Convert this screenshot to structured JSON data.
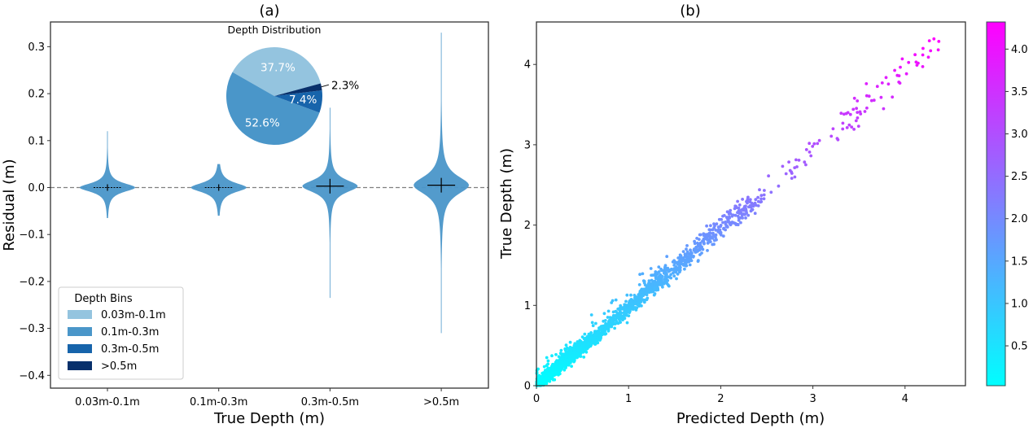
{
  "chart_data": [
    {
      "type": "violin",
      "panel_label": "(a)",
      "title": "",
      "xlabel": "True Depth (m)",
      "ylabel": "Residual (m)",
      "categories": [
        "0.03m-0.1m",
        "0.1m-0.3m",
        "0.3m-0.5m",
        ">0.5m"
      ],
      "ylim": [
        -0.42,
        0.35
      ],
      "yticks": [
        0.3,
        0.2,
        0.1,
        0.0,
        -0.1,
        -0.2,
        -0.3,
        -0.4
      ],
      "ytick_labels": [
        "0.3",
        "0.2",
        "0.1",
        "0.0",
        "−0.1",
        "−0.2",
        "−0.3",
        "−0.4"
      ],
      "reference_line": {
        "y": 0.0,
        "style": "dashed",
        "color": "#808080"
      },
      "violins": [
        {
          "category": "0.03m-0.1m",
          "min": -0.065,
          "max": 0.12,
          "mean": 0.0,
          "median": 0.0,
          "spread": 0.012,
          "color": "#4a96c9"
        },
        {
          "category": "0.1m-0.3m",
          "min": -0.06,
          "max": 0.05,
          "mean": 0.0,
          "median": 0.0,
          "spread": 0.013,
          "color": "#4a96c9"
        },
        {
          "category": "0.3m-0.5m",
          "min": -0.235,
          "max": 0.17,
          "mean": 0.003,
          "median": 0.002,
          "spread": 0.017,
          "color": "#4a96c9"
        },
        {
          "category": ">0.5m",
          "min": -0.31,
          "max": 0.33,
          "mean": 0.005,
          "median": 0.004,
          "spread": 0.025,
          "color": "#4a96c9"
        }
      ],
      "inset_pie": {
        "title": "Depth Distribution",
        "start_angle_deg": 15,
        "slices": [
          {
            "label": "0.03m-0.1m",
            "value": 37.7,
            "text": "37.7%",
            "color": "#94c4df",
            "label_inside": true
          },
          {
            "label": "0.1m-0.3m",
            "value": 52.6,
            "text": "52.6%",
            "color": "#4a96c9",
            "label_inside": true
          },
          {
            "label": "0.3m-0.5m",
            "value": 7.4,
            "text": "7.4%",
            "color": "#1764ab",
            "label_inside": true
          },
          {
            "label": ">0.5m",
            "value": 2.3,
            "text": "2.3%",
            "color": "#08306b",
            "label_inside": false
          }
        ]
      },
      "legend": {
        "title": "Depth Bins",
        "placement": "lower-left",
        "entries": [
          {
            "label": "0.03m-0.1m",
            "color": "#94c4df"
          },
          {
            "label": "0.1m-0.3m",
            "color": "#4a96c9"
          },
          {
            "label": "0.3m-0.5m",
            "color": "#1764ab"
          },
          {
            "label": ">0.5m",
            "color": "#08306b"
          }
        ]
      }
    },
    {
      "type": "scatter",
      "panel_label": "(b)",
      "title": "",
      "xlabel": "Predicted Depth (m)",
      "ylabel": "True Depth (m)",
      "xlim": [
        0,
        4.6
      ],
      "ylim": [
        0,
        4.5
      ],
      "xticks": [
        0,
        1,
        2,
        3,
        4
      ],
      "yticks": [
        0,
        1,
        2,
        3,
        4
      ],
      "grid": false,
      "point_summary": {
        "relation": "True Depth ≈ Predicted Depth",
        "x_range": [
          0.0,
          4.45
        ],
        "y_range": [
          0.0,
          4.32
        ],
        "approx_point_count": 2200,
        "density": "very dense below 1 m, sparse above 2.3 m",
        "note": "individual points not legible; rendered from this summary"
      },
      "colorbar": {
        "colormap": "cool",
        "color_low": "#00ffff",
        "color_high": "#ff00ff",
        "range": [
          0.03,
          4.32
        ],
        "ticks": [
          0.5,
          1.0,
          1.5,
          2.0,
          2.5,
          3.0,
          3.5,
          4.0
        ],
        "tick_labels": [
          "0.5",
          "1.0",
          "1.5",
          "2.0",
          "2.5",
          "3.0",
          "3.5",
          "4.0"
        ],
        "color_by": "True Depth (m)"
      }
    }
  ]
}
